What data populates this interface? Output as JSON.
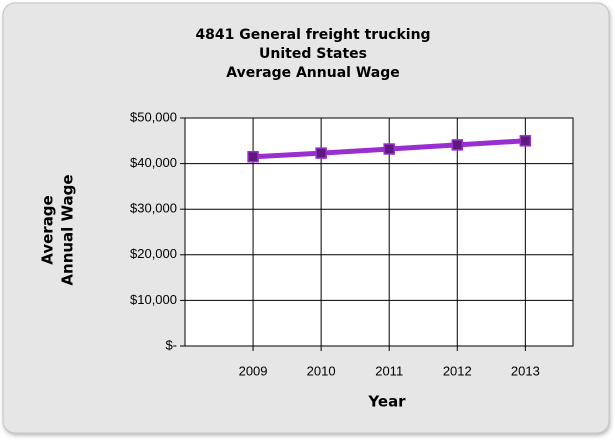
{
  "chart_data": {
    "type": "line",
    "title": [
      "4841 General freight trucking",
      "United States",
      "Average Annual Wage"
    ],
    "x_label": "Year",
    "y_label": [
      "Average",
      "Annual Wage"
    ],
    "categories": [
      "2009",
      "2010",
      "2011",
      "2012",
      "2013"
    ],
    "series": [
      {
        "name": "Average Annual Wage",
        "color": "#9a2fd0",
        "marker_color": "#5c1a7a",
        "values": [
          41500,
          42300,
          43200,
          44100,
          45000
        ]
      }
    ],
    "ylim": [
      0,
      50000
    ],
    "yticks": [
      {
        "value": 0,
        "label": "$-"
      },
      {
        "value": 10000,
        "label": "$10,000"
      },
      {
        "value": 20000,
        "label": "$20,000"
      },
      {
        "value": 30000,
        "label": "$30,000"
      },
      {
        "value": 40000,
        "label": "$40,000"
      },
      {
        "value": 50000,
        "label": "$50,000"
      }
    ],
    "grid": true
  }
}
